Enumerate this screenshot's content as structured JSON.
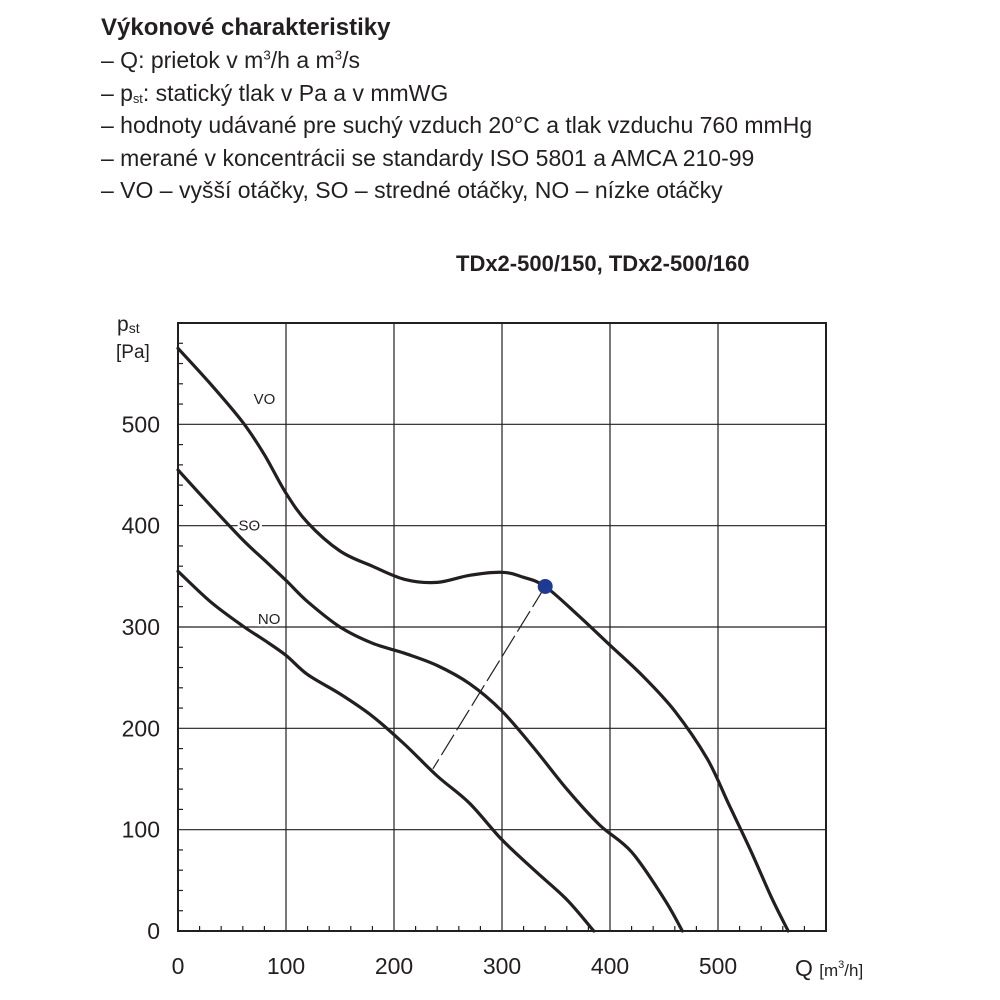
{
  "notes": {
    "title": "Výkonové charakteristiky",
    "items": [
      {
        "parts": [
          "– Q: prietok v m",
          "3",
          "/h a m",
          "3",
          "/s"
        ]
      },
      {
        "parts": [
          "– p",
          "st",
          ": statický tlak v Pa a v mmWG"
        ]
      },
      {
        "parts": [
          "– hodnoty udávané  pre suchý vzduch 20°C a tlak vzduchu 760 mmHg"
        ]
      },
      {
        "parts": [
          "– merané v koncentrácii se standardy ISO 5801 a AMCA 210-99"
        ]
      },
      {
        "parts": [
          "– VO – vyšší otáčky, SO – stredné otáčky, NO – nízke otáčky"
        ]
      }
    ]
  },
  "chart_data": {
    "type": "line",
    "title": "TDx2-500/150, TDx2-500/160",
    "xlabel": {
      "main": "Q ",
      "unit_pre": "[m",
      "unit_sup": "3",
      "unit_post": "/h]"
    },
    "ylabel": {
      "line1_main": "p",
      "line1_sub": "st",
      "line2": "[Pa]"
    },
    "xlim": [
      0,
      600
    ],
    "ylim": [
      0,
      600
    ],
    "x_ticks": [
      0,
      100,
      200,
      300,
      400,
      500
    ],
    "y_ticks": [
      0,
      100,
      200,
      300,
      400,
      500
    ],
    "grid": true,
    "series": [
      {
        "name": "VO",
        "points": [
          [
            0,
            575
          ],
          [
            30,
            540
          ],
          [
            60,
            502
          ],
          [
            80,
            470
          ],
          [
            100,
            432
          ],
          [
            120,
            403
          ],
          [
            150,
            375
          ],
          [
            180,
            360
          ],
          [
            210,
            347
          ],
          [
            240,
            344
          ],
          [
            270,
            351
          ],
          [
            300,
            354
          ],
          [
            320,
            349
          ],
          [
            340,
            340
          ],
          [
            370,
            312
          ],
          [
            400,
            282
          ],
          [
            430,
            252
          ],
          [
            460,
            217
          ],
          [
            490,
            170
          ],
          [
            510,
            125
          ],
          [
            530,
            80
          ],
          [
            550,
            32
          ],
          [
            565,
            0
          ]
        ]
      },
      {
        "name": "SO",
        "points": [
          [
            0,
            455
          ],
          [
            30,
            420
          ],
          [
            60,
            386
          ],
          [
            80,
            366
          ],
          [
            100,
            346
          ],
          [
            120,
            325
          ],
          [
            150,
            300
          ],
          [
            180,
            284
          ],
          [
            210,
            274
          ],
          [
            240,
            262
          ],
          [
            270,
            244
          ],
          [
            300,
            217
          ],
          [
            330,
            180
          ],
          [
            360,
            140
          ],
          [
            390,
            105
          ],
          [
            420,
            78
          ],
          [
            450,
            32
          ],
          [
            467,
            0
          ]
        ]
      },
      {
        "name": "NO",
        "points": [
          [
            0,
            355
          ],
          [
            30,
            325
          ],
          [
            60,
            301
          ],
          [
            80,
            287
          ],
          [
            100,
            272
          ],
          [
            120,
            253
          ],
          [
            150,
            234
          ],
          [
            180,
            212
          ],
          [
            210,
            184
          ],
          [
            240,
            153
          ],
          [
            270,
            126
          ],
          [
            300,
            90
          ],
          [
            330,
            60
          ],
          [
            360,
            31
          ],
          [
            385,
            0
          ]
        ]
      }
    ],
    "operating_point": {
      "x": 340,
      "y": 340,
      "color": "#1f3a93"
    },
    "efficiency_line": {
      "from": [
        340,
        340
      ],
      "to": [
        236,
        160
      ]
    }
  }
}
